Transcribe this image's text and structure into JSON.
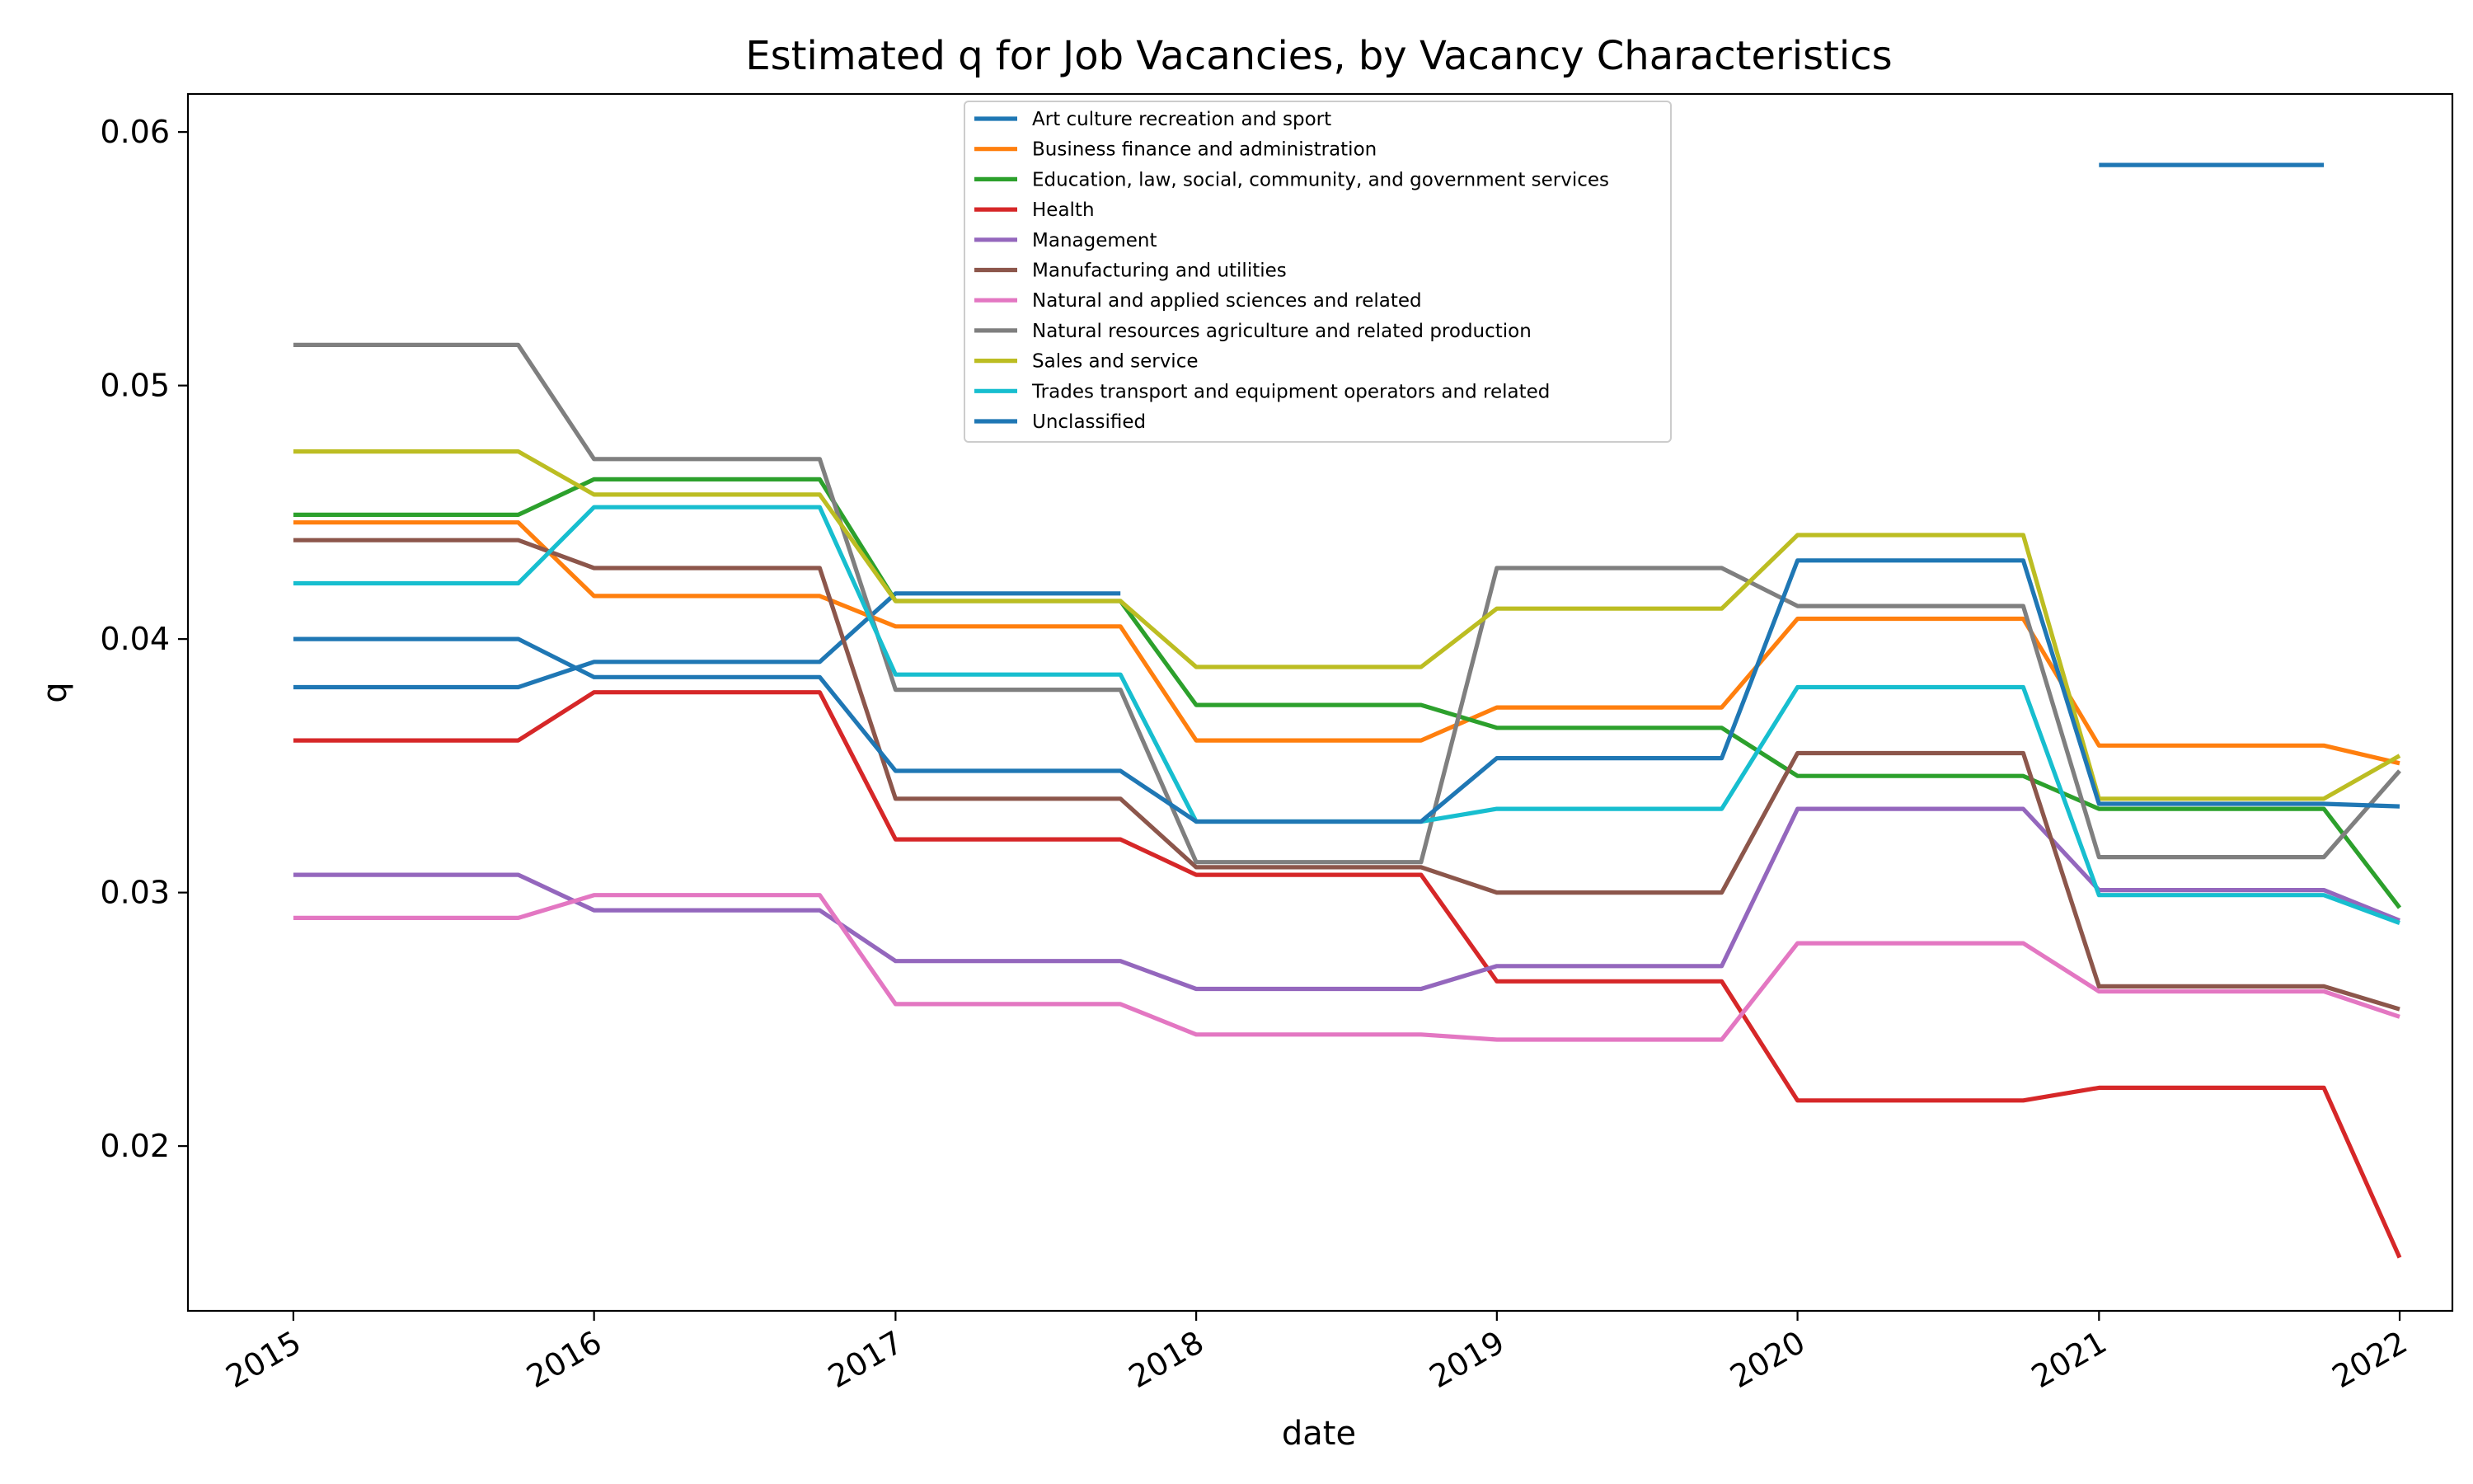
{
  "chart_data": {
    "type": "line",
    "title": "Estimated q for Job Vacancies, by Vacancy Characteristics",
    "xlabel": "date",
    "ylabel": "q",
    "xlim": [
      "2014-08-26",
      "2022-03-06"
    ],
    "ylim": [
      0.0135,
      0.0615
    ],
    "x_ticks": [
      "2015",
      "2016",
      "2017",
      "2018",
      "2019",
      "2020",
      "2021",
      "2022"
    ],
    "y_ticks": [
      "0.02",
      "0.03",
      "0.04",
      "0.05",
      "0.06"
    ],
    "legend_position": "upper center",
    "grid": false,
    "series": [
      {
        "name": "Art culture recreation and sport",
        "color": "#1f77b4",
        "points": [
          [
            "2015-01-01",
            0.0381
          ],
          [
            "2015-10-01",
            0.0381
          ],
          [
            "2016-01-01",
            0.0391
          ],
          [
            "2016-10-01",
            0.0391
          ],
          [
            "2017-01-01",
            0.0418
          ],
          [
            "2017-10-01",
            0.0418
          ]
        ]
      },
      {
        "name": "Business finance and administration",
        "color": "#ff7f0e",
        "points": [
          [
            "2015-01-01",
            0.0446
          ],
          [
            "2015-10-01",
            0.0446
          ],
          [
            "2016-01-01",
            0.0417
          ],
          [
            "2016-10-01",
            0.0417
          ],
          [
            "2017-01-01",
            0.0405
          ],
          [
            "2017-10-01",
            0.0405
          ],
          [
            "2018-01-01",
            0.036
          ],
          [
            "2018-10-01",
            0.036
          ],
          [
            "2019-01-01",
            0.0373
          ],
          [
            "2019-10-01",
            0.0373
          ],
          [
            "2020-01-01",
            0.0408
          ],
          [
            "2020-10-01",
            0.0408
          ],
          [
            "2021-01-01",
            0.0358
          ],
          [
            "2021-10-01",
            0.0358
          ],
          [
            "2022-01-01",
            0.0351
          ]
        ]
      },
      {
        "name": "Education, law, social, community, and government services",
        "color": "#2ca02c",
        "points": [
          [
            "2015-01-01",
            0.0449
          ],
          [
            "2015-10-01",
            0.0449
          ],
          [
            "2016-01-01",
            0.0463
          ],
          [
            "2016-10-01",
            0.0463
          ],
          [
            "2017-01-01",
            0.0415
          ],
          [
            "2017-10-01",
            0.0415
          ],
          [
            "2018-01-01",
            0.0374
          ],
          [
            "2018-10-01",
            0.0374
          ],
          [
            "2019-01-01",
            0.0365
          ],
          [
            "2019-10-01",
            0.0365
          ],
          [
            "2020-01-01",
            0.0346
          ],
          [
            "2020-10-01",
            0.0346
          ],
          [
            "2021-01-01",
            0.0333
          ],
          [
            "2021-10-01",
            0.0333
          ],
          [
            "2022-01-01",
            0.0294
          ]
        ]
      },
      {
        "name": "Health",
        "color": "#d62728",
        "points": [
          [
            "2015-01-01",
            0.036
          ],
          [
            "2015-10-01",
            0.036
          ],
          [
            "2016-01-01",
            0.0379
          ],
          [
            "2016-10-01",
            0.0379
          ],
          [
            "2017-01-01",
            0.0321
          ],
          [
            "2017-10-01",
            0.0321
          ],
          [
            "2018-01-01",
            0.0307
          ],
          [
            "2018-10-01",
            0.0307
          ],
          [
            "2019-01-01",
            0.0265
          ],
          [
            "2019-10-01",
            0.0265
          ],
          [
            "2020-01-01",
            0.0218
          ],
          [
            "2020-10-01",
            0.0218
          ],
          [
            "2021-01-01",
            0.0223
          ],
          [
            "2021-10-01",
            0.0223
          ],
          [
            "2022-01-01",
            0.0156
          ]
        ]
      },
      {
        "name": "Management",
        "color": "#9467bd",
        "points": [
          [
            "2015-01-01",
            0.0307
          ],
          [
            "2015-10-01",
            0.0307
          ],
          [
            "2016-01-01",
            0.0293
          ],
          [
            "2016-10-01",
            0.0293
          ],
          [
            "2017-01-01",
            0.0273
          ],
          [
            "2017-10-01",
            0.0273
          ],
          [
            "2018-01-01",
            0.0262
          ],
          [
            "2018-10-01",
            0.0262
          ],
          [
            "2019-01-01",
            0.0271
          ],
          [
            "2019-10-01",
            0.0271
          ],
          [
            "2020-01-01",
            0.0333
          ],
          [
            "2020-10-01",
            0.0333
          ],
          [
            "2021-01-01",
            0.0301
          ],
          [
            "2021-10-01",
            0.0301
          ],
          [
            "2022-01-01",
            0.0289
          ]
        ]
      },
      {
        "name": "Manufacturing and utilities",
        "color": "#8c564b",
        "points": [
          [
            "2015-01-01",
            0.0439
          ],
          [
            "2015-10-01",
            0.0439
          ],
          [
            "2016-01-01",
            0.0428
          ],
          [
            "2016-10-01",
            0.0428
          ],
          [
            "2017-01-01",
            0.0337
          ],
          [
            "2017-10-01",
            0.0337
          ],
          [
            "2018-01-01",
            0.031
          ],
          [
            "2018-10-01",
            0.031
          ],
          [
            "2019-01-01",
            0.03
          ],
          [
            "2019-10-01",
            0.03
          ],
          [
            "2020-01-01",
            0.0355
          ],
          [
            "2020-10-01",
            0.0355
          ],
          [
            "2021-01-01",
            0.0263
          ],
          [
            "2021-10-01",
            0.0263
          ],
          [
            "2022-01-01",
            0.0254
          ]
        ]
      },
      {
        "name": "Natural and applied sciences and related",
        "color": "#e377c2",
        "points": [
          [
            "2015-01-01",
            0.029
          ],
          [
            "2015-10-01",
            0.029
          ],
          [
            "2016-01-01",
            0.0299
          ],
          [
            "2016-10-01",
            0.0299
          ],
          [
            "2017-01-01",
            0.0256
          ],
          [
            "2017-10-01",
            0.0256
          ],
          [
            "2018-01-01",
            0.0244
          ],
          [
            "2018-10-01",
            0.0244
          ],
          [
            "2019-01-01",
            0.0242
          ],
          [
            "2019-10-01",
            0.0242
          ],
          [
            "2020-01-01",
            0.028
          ],
          [
            "2020-10-01",
            0.028
          ],
          [
            "2021-01-01",
            0.0261
          ],
          [
            "2021-10-01",
            0.0261
          ],
          [
            "2022-01-01",
            0.0251
          ]
        ]
      },
      {
        "name": "Natural resources agriculture and related production",
        "color": "#7f7f7f",
        "points": [
          [
            "2015-01-01",
            0.0516
          ],
          [
            "2015-10-01",
            0.0516
          ],
          [
            "2016-01-01",
            0.0471
          ],
          [
            "2016-10-01",
            0.0471
          ],
          [
            "2017-01-01",
            0.038
          ],
          [
            "2017-10-01",
            0.038
          ],
          [
            "2018-01-01",
            0.0312
          ],
          [
            "2018-10-01",
            0.0312
          ],
          [
            "2019-01-01",
            0.0428
          ],
          [
            "2019-10-01",
            0.0428
          ],
          [
            "2020-01-01",
            0.0413
          ],
          [
            "2020-10-01",
            0.0413
          ],
          [
            "2021-01-01",
            0.0314
          ],
          [
            "2021-10-01",
            0.0314
          ],
          [
            "2022-01-01",
            0.0348
          ]
        ]
      },
      {
        "name": "Sales and service",
        "color": "#bcbd22",
        "points": [
          [
            "2015-01-01",
            0.0474
          ],
          [
            "2015-10-01",
            0.0474
          ],
          [
            "2016-01-01",
            0.0457
          ],
          [
            "2016-10-01",
            0.0457
          ],
          [
            "2017-01-01",
            0.0415
          ],
          [
            "2017-10-01",
            0.0415
          ],
          [
            "2018-01-01",
            0.0389
          ],
          [
            "2018-10-01",
            0.0389
          ],
          [
            "2019-01-01",
            0.0412
          ],
          [
            "2019-10-01",
            0.0412
          ],
          [
            "2020-01-01",
            0.0441
          ],
          [
            "2020-10-01",
            0.0441
          ],
          [
            "2021-01-01",
            0.0337
          ],
          [
            "2021-10-01",
            0.0337
          ],
          [
            "2022-01-01",
            0.0354
          ]
        ]
      },
      {
        "name": "Trades transport and equipment operators and related",
        "color": "#17becf",
        "points": [
          [
            "2015-01-01",
            0.0422
          ],
          [
            "2015-10-01",
            0.0422
          ],
          [
            "2016-01-01",
            0.0452
          ],
          [
            "2016-10-01",
            0.0452
          ],
          [
            "2017-01-01",
            0.0386
          ],
          [
            "2017-10-01",
            0.0386
          ],
          [
            "2018-01-01",
            0.0328
          ],
          [
            "2018-10-01",
            0.0328
          ],
          [
            "2019-01-01",
            0.0333
          ],
          [
            "2019-10-01",
            0.0333
          ],
          [
            "2020-01-01",
            0.0381
          ],
          [
            "2020-10-01",
            0.0381
          ],
          [
            "2021-01-01",
            0.0299
          ],
          [
            "2021-10-01",
            0.0299
          ],
          [
            "2022-01-01",
            0.0288
          ]
        ]
      },
      {
        "name": "Unclassified",
        "color": "#1f77b4",
        "points": [
          [
            "2015-01-01",
            0.04
          ],
          [
            "2015-10-01",
            0.04
          ],
          [
            "2016-01-01",
            0.0385
          ],
          [
            "2016-10-01",
            0.0385
          ],
          [
            "2017-01-01",
            0.0348
          ],
          [
            "2017-10-01",
            0.0348
          ],
          [
            "2018-01-01",
            0.0328
          ],
          [
            "2018-10-01",
            0.0328
          ],
          [
            "2019-01-01",
            0.0353
          ],
          [
            "2019-10-01",
            0.0353
          ],
          [
            "2020-01-01",
            0.0431
          ],
          [
            "2020-10-01",
            0.0431
          ],
          [
            "2021-01-01",
            0.0335
          ],
          [
            "2021-10-01",
            0.0335
          ],
          [
            "2022-01-01",
            0.0334
          ]
        ]
      }
    ],
    "extra_segments": [
      {
        "color": "#1f77b4",
        "points": [
          [
            "2021-01-01",
            0.0587
          ],
          [
            "2021-10-01",
            0.0587
          ]
        ]
      }
    ]
  }
}
